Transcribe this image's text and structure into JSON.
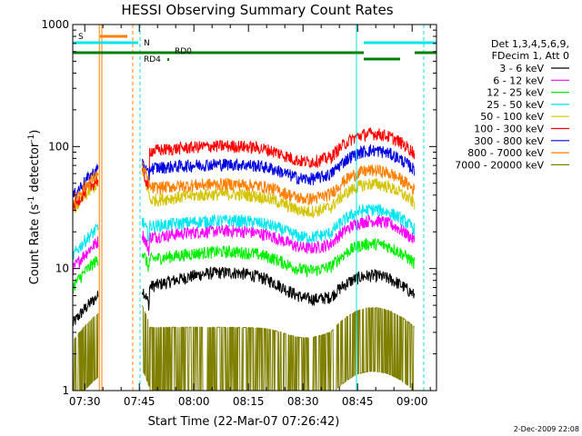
{
  "chart_data": {
    "type": "line",
    "title": "HESSI Observing Summary Count Rates",
    "xlabel": "Start Time (22-Mar-07 07:26:42)",
    "ylabel_parts": {
      "main": "Count Rate (s",
      "sup1": "-1",
      "mid": " detector",
      "sup2": "-1",
      "end": ")"
    },
    "yscale": "log",
    "ylim": [
      1,
      1000
    ],
    "xlim_minutes": [
      0,
      100
    ],
    "x_tick_labels": [
      "07:30",
      "07:45",
      "08:00",
      "08:15",
      "08:30",
      "08:45",
      "09:00"
    ],
    "x_tick_minutes": [
      3.3,
      18.3,
      33.3,
      48.3,
      63.3,
      78.3,
      93.3
    ],
    "y_tick_labels": [
      "1",
      "10",
      "100",
      "1000"
    ],
    "y_tick_values": [
      1,
      10,
      100,
      1000
    ],
    "legend_header": [
      "Det 1,3,4,5,6,9,",
      "FDecim 1, Att 0"
    ],
    "legend_position": "right",
    "footer_date": "2-Dec-2009 22:08",
    "flags": [
      {
        "label": "S",
        "color": "#ff7f00"
      },
      {
        "label": "N",
        "color": "#00e5ee"
      },
      {
        "label": "RD0",
        "color": "#007f00"
      },
      {
        "label": "RD4",
        "color": "#007f00"
      }
    ],
    "series": [
      {
        "name": "3 - 6 keV",
        "color": "#000000",
        "base": 6.0,
        "spring": 5.0,
        "hump": 1.55
      },
      {
        "name": "6 - 12 keV",
        "color": "#ff00ff",
        "base": 17.0,
        "spring": 14.0,
        "hump": 1.2
      },
      {
        "name": "12 - 25 keV",
        "color": "#00ee00",
        "base": 11.0,
        "spring": 10.0,
        "hump": 1.25
      },
      {
        "name": "25 - 50 keV",
        "color": "#00e5ee",
        "base": 21.0,
        "spring": 18.0,
        "hump": 1.18
      },
      {
        "name": "50 - 100 keV",
        "color": "#d4c400",
        "base": 34.0,
        "spring": 42.0,
        "hump": 1.2
      },
      {
        "name": "100 - 300 keV",
        "color": "#ff0000",
        "base": 88.0,
        "spring": 45.0,
        "hump": 1.15
      },
      {
        "name": "300 - 800 keV",
        "color": "#0000e0",
        "base": 64.0,
        "spring": 55.0,
        "hump": 1.12
      },
      {
        "name": "800 - 7000 keV",
        "color": "#ff7f00",
        "base": 44.0,
        "spring": 50.0,
        "hump": 1.12
      },
      {
        "name": "7000 - 20000 keV",
        "color": "#7f7f00",
        "base": 2.2,
        "spring": 2.4,
        "hump": 1.0
      }
    ],
    "gaps_minutes": [
      [
        7,
        19
      ],
      [
        94,
        100
      ]
    ],
    "saa_interval_minutes": [
      71,
      78
    ]
  }
}
